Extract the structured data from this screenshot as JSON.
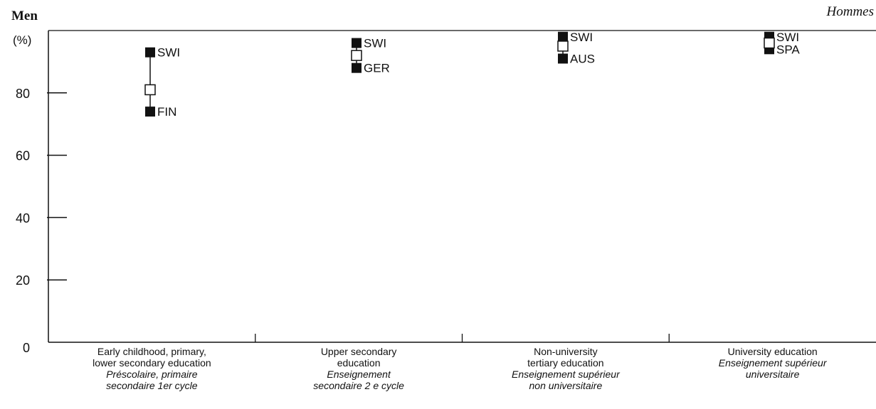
{
  "header": {
    "ylabel": "Men",
    "yunit": "(%)",
    "title_fr": "Hommes"
  },
  "chart_data": {
    "type": "scatter",
    "ylabel": "Men (%)",
    "ylim": [
      0,
      100
    ],
    "yticks": [
      0,
      20,
      40,
      60,
      80
    ],
    "grid": false,
    "categories": [
      {
        "label_en": [
          "Early childhood, primary,",
          "lower secondary education"
        ],
        "label_fr": [
          "Préscolaire, primaire",
          "secondaire 1er cycle"
        ],
        "high": {
          "label": "SWI",
          "value": 93
        },
        "mean": 81,
        "low": {
          "label": "FIN",
          "value": 74
        }
      },
      {
        "label_en": [
          "Upper secondary",
          "education"
        ],
        "label_fr": [
          "Enseignement",
          "secondaire 2 e cycle"
        ],
        "high": {
          "label": "SWI",
          "value": 96
        },
        "mean": 92,
        "low": {
          "label": "GER",
          "value": 88
        }
      },
      {
        "label_en": [
          "Non-university",
          "tertiary education"
        ],
        "label_fr": [
          "Enseignement supérieur",
          "non universitaire"
        ],
        "high": {
          "label": "SWI",
          "value": 98
        },
        "mean": 95,
        "low": {
          "label": "AUS",
          "value": 91
        }
      },
      {
        "label_en": [
          "University education"
        ],
        "label_fr": [
          "Enseignement supérieur",
          "universitaire"
        ],
        "high": {
          "label": "SWI",
          "value": 98
        },
        "mean": 96,
        "low": {
          "label": "SPA",
          "value": 94
        }
      }
    ]
  }
}
